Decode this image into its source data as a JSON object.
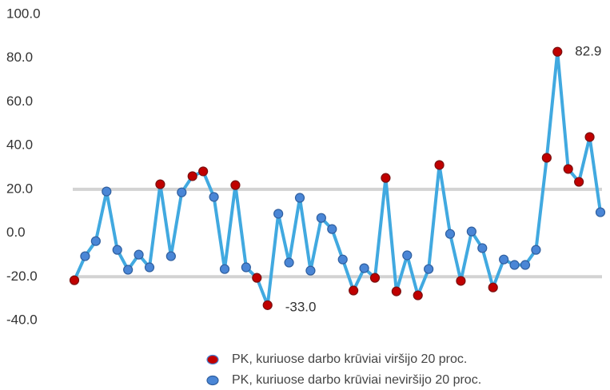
{
  "chart_data": {
    "type": "line",
    "values": [
      -21.6,
      -10.6,
      -3.7,
      19.0,
      -7.7,
      -16.8,
      -9.9,
      -15.7,
      22.3,
      -10.6,
      18.6,
      26.0,
      28.2,
      16.5,
      -16.5,
      21.9,
      -15.7,
      -20.5,
      -33.0,
      8.8,
      -13.5,
      16.1,
      -17.2,
      6.9,
      1.8,
      -12.1,
      -26.3,
      -16.1,
      -20.5,
      25.2,
      -26.7,
      -10.2,
      -28.5,
      -16.5,
      31.1,
      -0.4,
      -21.9,
      0.7,
      -6.9,
      -24.9,
      -12.1,
      -14.6,
      -14.6,
      -7.7,
      34.4,
      82.9,
      29.3,
      23.4,
      43.9,
      9.5
    ],
    "line_color": "#41a9e0",
    "reference_lines": [
      20,
      -20
    ],
    "reference_color": "#d3d3d3",
    "markers": [
      {
        "name": "PK, kuriuose darbo krūviai viršijo 20 proc.",
        "color": "#c00000"
      },
      {
        "name": "PK, kuriuose darbo krūviai neviršijo 20 proc.",
        "color": "#4a86d6"
      }
    ],
    "annotations": [
      {
        "index": 45,
        "text": "82.9"
      },
      {
        "index": 18,
        "text": "-33.0"
      }
    ],
    "ylim": [
      -40,
      100
    ],
    "yticks": [
      {
        "value": -40,
        "label": "-40.0"
      },
      {
        "value": -20,
        "label": "-20.0"
      },
      {
        "value": 0,
        "label": "0.0"
      },
      {
        "value": 20,
        "label": "20.0"
      },
      {
        "value": 40,
        "label": "40.0"
      },
      {
        "value": 60,
        "label": "60.0"
      },
      {
        "value": 80,
        "label": "80.0"
      },
      {
        "value": 100,
        "label": "100.0"
      }
    ]
  }
}
